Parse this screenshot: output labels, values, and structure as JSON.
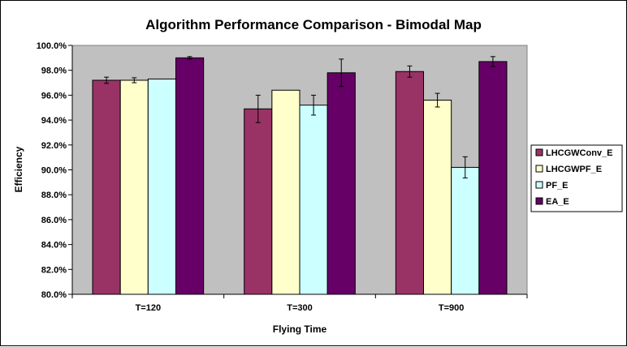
{
  "chart_data": {
    "type": "bar",
    "title": "Algorithm Performance Comparison - Bimodal Map",
    "xlabel": "Flying Time",
    "ylabel": "Efficiency",
    "categories": [
      "T=120",
      "T=300",
      "T=900"
    ],
    "ylim": [
      80,
      100
    ],
    "ytick_step": 2,
    "ytick_labels": [
      "80.0%",
      "82.0%",
      "84.0%",
      "86.0%",
      "88.0%",
      "90.0%",
      "92.0%",
      "94.0%",
      "96.0%",
      "98.0%",
      "100.0%"
    ],
    "grid": false,
    "plot_background": "#c0c0c0",
    "legend_position": "right",
    "series": [
      {
        "name": "LHCGWConv_E",
        "color": "#993366",
        "values": [
          97.2,
          94.9,
          97.9
        ],
        "errors": [
          0.25,
          1.1,
          0.45
        ]
      },
      {
        "name": "LHCGWPF_E",
        "color": "#ffffcc",
        "values": [
          97.2,
          96.4,
          95.6
        ],
        "errors": [
          0.2,
          0.0,
          0.55
        ]
      },
      {
        "name": "PF_E",
        "color": "#ccffff",
        "values": [
          97.3,
          95.2,
          90.2
        ],
        "errors": [
          0.0,
          0.8,
          0.85
        ]
      },
      {
        "name": "EA_E",
        "color": "#660066",
        "values": [
          99.0,
          97.8,
          98.7
        ],
        "errors": [
          0.1,
          1.1,
          0.4
        ]
      }
    ]
  }
}
